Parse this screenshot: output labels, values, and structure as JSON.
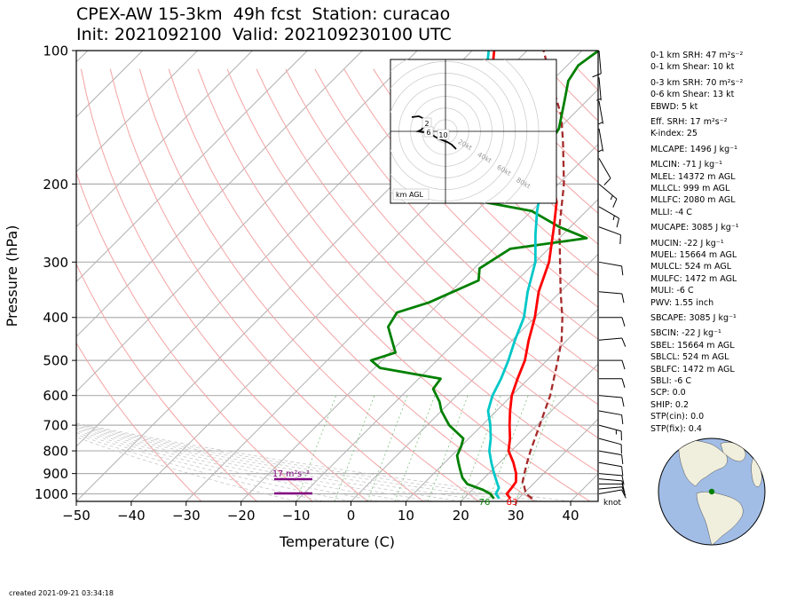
{
  "title_line1": "CPEX-AW 15-3km  49h fcst  Station: curacao",
  "title_line2": "Init: 2021092100  Valid: 202109230100 UTC",
  "created": "created 2021-09-21 03:34:18",
  "indices": [
    "0-1 km SRH: 47 m²s⁻²",
    "0-1 km Shear: 10 kt",
    "0-3 km SRH: 70 m²s⁻²",
    "0-6 km Shear: 13 kt",
    "EBWD: 5 kt",
    "Eff. SRH: 17 m²s⁻²",
    "K-index: 25",
    "MLCAPE: 1496 J kg⁻¹",
    "MLCIN: -71 J kg⁻¹",
    "MLEL: 14372 m AGL",
    "MLLCL: 999 m AGL",
    "MLLFC: 2080 m AGL",
    "MLLI: -4 C",
    "MUCAPE: 3085 J kg⁻¹",
    "MUCIN: -22 J kg⁻¹",
    "MUEL: 15664 m AGL",
    "MULCL: 524 m AGL",
    "MULFC: 1472 m AGL",
    "MULI: -6 C",
    "PWV: 1.55 inch",
    "SBCAPE: 3085 J kg⁻¹",
    "SBCIN: -22 J kg⁻¹",
    "SBEL: 15664 m AGL",
    "SBLCL: 524 m AGL",
    "SBLFC: 1472 m AGL",
    "SBLI: -6 C",
    "SCP: 0.0",
    "SHIP: 0.2",
    "STP(cin): 0.0",
    "STP(fix): 0.4"
  ],
  "chart_data": {
    "type": "line",
    "subtype": "skew-T log-P",
    "xlabel": "Temperature (C)",
    "ylabel": "Pressure (hPa)",
    "xlim": [
      -50,
      45
    ],
    "ylim": [
      1040,
      100
    ],
    "y_scale": "log",
    "x_ticks": [
      "−50",
      "−40",
      "−30",
      "−20",
      "−10",
      "0",
      "10",
      "20",
      "30",
      "40"
    ],
    "y_ticks": [
      "100",
      "200",
      "300",
      "400",
      "500",
      "600",
      "700",
      "800",
      "900",
      "1000"
    ],
    "surface_temp_label": "83",
    "surface_dewpoint_label": "76",
    "srh_label": "17 m²s⁻²",
    "wind_units_label": "knot",
    "colors": {
      "temperature": "#ff0000",
      "dewpoint": "#008000",
      "virtual_temperature": "#00c8c8",
      "parcel": "#a52a2a",
      "srh_bar": "#800080"
    },
    "series": [
      {
        "key": "temperature",
        "points": [
          [
            1025,
            28.5
          ],
          [
            1000,
            27
          ],
          [
            970,
            26.8
          ],
          [
            940,
            26.5
          ],
          [
            900,
            25
          ],
          [
            850,
            22.5
          ],
          [
            800,
            19.5
          ],
          [
            750,
            17.5
          ],
          [
            700,
            15
          ],
          [
            650,
            12.5
          ],
          [
            600,
            10
          ],
          [
            550,
            8
          ],
          [
            500,
            6
          ],
          [
            450,
            3
          ],
          [
            400,
            0
          ],
          [
            350,
            -4
          ],
          [
            300,
            -7.5
          ],
          [
            250,
            -13
          ],
          [
            220,
            -17
          ],
          [
            200,
            -21
          ],
          [
            180,
            -26
          ],
          [
            160,
            -32
          ],
          [
            140,
            -39
          ],
          [
            120,
            -47
          ],
          [
            110,
            -53
          ],
          [
            100,
            -56
          ]
        ]
      },
      {
        "key": "virtual_temperature",
        "points": [
          [
            1025,
            26.5
          ],
          [
            1000,
            25
          ],
          [
            970,
            24.5
          ],
          [
            940,
            23
          ],
          [
            900,
            21
          ],
          [
            850,
            18.5
          ],
          [
            800,
            16
          ],
          [
            750,
            14
          ],
          [
            700,
            11.5
          ],
          [
            650,
            8.5
          ],
          [
            600,
            6.5
          ],
          [
            550,
            5
          ],
          [
            500,
            3
          ],
          [
            450,
            0.5
          ],
          [
            400,
            -2
          ],
          [
            350,
            -6
          ],
          [
            300,
            -10
          ],
          [
            260,
            -15
          ],
          [
            230,
            -19
          ],
          [
            200,
            -23
          ],
          [
            180,
            -27
          ],
          [
            160,
            -33
          ],
          [
            140,
            -40
          ],
          [
            120,
            -48
          ],
          [
            110,
            -54
          ],
          [
            100,
            -57
          ]
        ]
      },
      {
        "key": "dewpoint",
        "points": [
          [
            1025,
            25.5
          ],
          [
            1000,
            24
          ],
          [
            980,
            22
          ],
          [
            950,
            18
          ],
          [
            920,
            16
          ],
          [
            880,
            14
          ],
          [
            850,
            12.5
          ],
          [
            820,
            11
          ],
          [
            780,
            10
          ],
          [
            750,
            9
          ],
          [
            700,
            4
          ],
          [
            650,
            0
          ],
          [
            620,
            -2
          ],
          [
            580,
            -5.5
          ],
          [
            550,
            -6
          ],
          [
            520,
            -19
          ],
          [
            500,
            -22
          ],
          [
            480,
            -19
          ],
          [
            420,
            -25
          ],
          [
            390,
            -26
          ],
          [
            370,
            -22
          ],
          [
            330,
            -17
          ],
          [
            310,
            -19
          ],
          [
            280,
            -17
          ],
          [
            265,
            -5
          ],
          [
            250,
            -12
          ],
          [
            230,
            -20
          ],
          [
            215,
            -35
          ],
          [
            200,
            -25
          ],
          [
            190,
            -26
          ],
          [
            175,
            -28
          ],
          [
            150,
            -30
          ],
          [
            130,
            -34
          ],
          [
            117,
            -37
          ],
          [
            108,
            -38
          ],
          [
            100,
            -37
          ]
        ]
      },
      {
        "key": "parcel",
        "dashed": true,
        "points": [
          [
            1025,
            32.5
          ],
          [
            1000,
            30.5
          ],
          [
            960,
            28.7
          ],
          [
            950,
            28
          ],
          [
            900,
            26.5
          ],
          [
            850,
            25
          ],
          [
            800,
            23.5
          ],
          [
            700,
            20.5
          ],
          [
            600,
            17
          ],
          [
            500,
            12
          ],
          [
            450,
            9
          ],
          [
            400,
            5
          ],
          [
            350,
            0
          ],
          [
            300,
            -5.5
          ],
          [
            250,
            -12
          ],
          [
            200,
            -19
          ],
          [
            160,
            -27
          ],
          [
            140,
            -32
          ],
          [
            120,
            -39
          ],
          [
            100,
            -47
          ]
        ]
      }
    ],
    "hodograph": {
      "rings_kt": [
        20,
        40,
        60,
        80
      ],
      "ring_labels": [
        "20kt",
        "40kt",
        "60kt",
        "80kt"
      ],
      "height_labels": [
        "2",
        "6",
        "10"
      ],
      "label": "km AGL",
      "trace_kt": [
        [
          3,
          -3
        ],
        [
          1,
          -1
        ],
        [
          -1,
          0.5
        ],
        [
          -2,
          -1
        ],
        [
          -3,
          -0.5
        ],
        [
          -5,
          0
        ],
        [
          -4,
          1.5
        ],
        [
          -2,
          2
        ],
        [
          -3,
          2.5
        ],
        [
          -5,
          3.5
        ],
        [
          -7,
          3.5
        ],
        [
          -6,
          4.5
        ],
        [
          -4,
          5
        ],
        [
          -3,
          4
        ]
      ]
    },
    "wind_barbs": [
      {
        "p": 1000,
        "speed_kt": 12,
        "dir_deg": 80
      },
      {
        "p": 975,
        "speed_kt": 14,
        "dir_deg": 85
      },
      {
        "p": 950,
        "speed_kt": 13,
        "dir_deg": 90
      },
      {
        "p": 925,
        "speed_kt": 12,
        "dir_deg": 95
      },
      {
        "p": 900,
        "speed_kt": 12,
        "dir_deg": 95
      },
      {
        "p": 850,
        "speed_kt": 12,
        "dir_deg": 100
      },
      {
        "p": 800,
        "speed_kt": 13,
        "dir_deg": 100
      },
      {
        "p": 750,
        "speed_kt": 14,
        "dir_deg": 105
      },
      {
        "p": 700,
        "speed_kt": 15,
        "dir_deg": 105
      },
      {
        "p": 650,
        "speed_kt": 14,
        "dir_deg": 100
      },
      {
        "p": 600,
        "speed_kt": 12,
        "dir_deg": 95
      },
      {
        "p": 550,
        "speed_kt": 10,
        "dir_deg": 90
      },
      {
        "p": 500,
        "speed_kt": 10,
        "dir_deg": 90
      },
      {
        "p": 450,
        "speed_kt": 10,
        "dir_deg": 85
      },
      {
        "p": 400,
        "speed_kt": 10,
        "dir_deg": 90
      },
      {
        "p": 350,
        "speed_kt": 11,
        "dir_deg": 95
      },
      {
        "p": 300,
        "speed_kt": 12,
        "dir_deg": 100
      },
      {
        "p": 250,
        "speed_kt": 14,
        "dir_deg": 110
      },
      {
        "p": 225,
        "speed_kt": 16,
        "dir_deg": 120
      },
      {
        "p": 200,
        "speed_kt": 18,
        "dir_deg": 130
      },
      {
        "p": 175,
        "speed_kt": 12,
        "dir_deg": 150
      },
      {
        "p": 150,
        "speed_kt": 8,
        "dir_deg": 170
      },
      {
        "p": 130,
        "speed_kt": 8,
        "dir_deg": 170
      },
      {
        "p": 115,
        "speed_kt": 9,
        "dir_deg": 175
      },
      {
        "p": 100,
        "speed_kt": 10,
        "dir_deg": 175
      }
    ],
    "map": {
      "station_marker": "curacao"
    }
  }
}
